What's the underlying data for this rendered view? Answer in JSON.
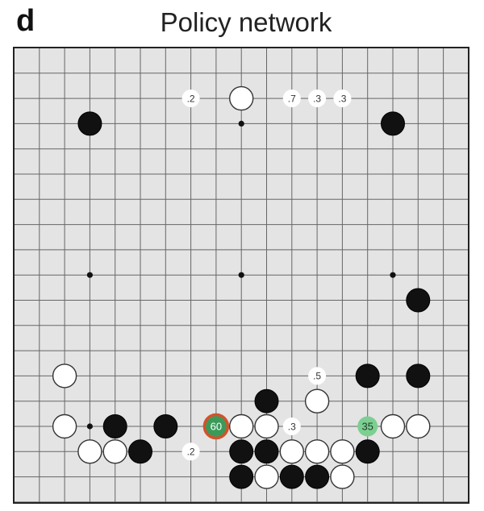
{
  "panel_letter": "d",
  "title": "Policy network",
  "board": {
    "size": 19,
    "colors": {
      "background": "#e4e4e4",
      "grid": "#666666",
      "frame": "#222222",
      "black_stone": "#111111",
      "white_stone": "#ffffff",
      "best_move_fill": "#3b9a5a",
      "best_move_ring": "#d4522a",
      "highlight_fill": "#7ccf91"
    },
    "star_points": [
      [
        3,
        3
      ],
      [
        9,
        3
      ],
      [
        15,
        3
      ],
      [
        3,
        9
      ],
      [
        9,
        9
      ],
      [
        15,
        9
      ],
      [
        3,
        15
      ],
      [
        9,
        15
      ],
      [
        15,
        15
      ]
    ],
    "black_stones": [
      [
        3,
        3
      ],
      [
        15,
        3
      ],
      [
        16,
        10
      ],
      [
        14,
        13
      ],
      [
        16,
        13
      ],
      [
        10,
        14
      ],
      [
        4,
        15
      ],
      [
        6,
        15
      ],
      [
        5,
        16
      ],
      [
        9,
        16
      ],
      [
        10,
        16
      ],
      [
        14,
        16
      ],
      [
        9,
        17
      ],
      [
        11,
        17
      ],
      [
        12,
        17
      ]
    ],
    "white_stones": [
      [
        9,
        2
      ],
      [
        2,
        13
      ],
      [
        12,
        14
      ],
      [
        2,
        15
      ],
      [
        9,
        15
      ],
      [
        10,
        15
      ],
      [
        15,
        15
      ],
      [
        16,
        15
      ],
      [
        3,
        16
      ],
      [
        4,
        16
      ],
      [
        11,
        16
      ],
      [
        12,
        16
      ],
      [
        13,
        16
      ],
      [
        10,
        17
      ],
      [
        13,
        17
      ]
    ],
    "move_probabilities": [
      {
        "col": 7,
        "row": 2,
        "label": ".2",
        "style": "plain"
      },
      {
        "col": 11,
        "row": 2,
        "label": ".7",
        "style": "plain"
      },
      {
        "col": 12,
        "row": 2,
        "label": ".3",
        "style": "plain"
      },
      {
        "col": 13,
        "row": 2,
        "label": ".3",
        "style": "plain"
      },
      {
        "col": 12,
        "row": 13,
        "label": ".5",
        "style": "plain"
      },
      {
        "col": 11,
        "row": 15,
        "label": ".3",
        "style": "plain"
      },
      {
        "col": 7,
        "row": 16,
        "label": ".2",
        "style": "plain"
      },
      {
        "col": 8,
        "row": 15,
        "label": "60",
        "style": "best"
      },
      {
        "col": 14,
        "row": 15,
        "label": "35",
        "style": "highlight"
      }
    ]
  }
}
